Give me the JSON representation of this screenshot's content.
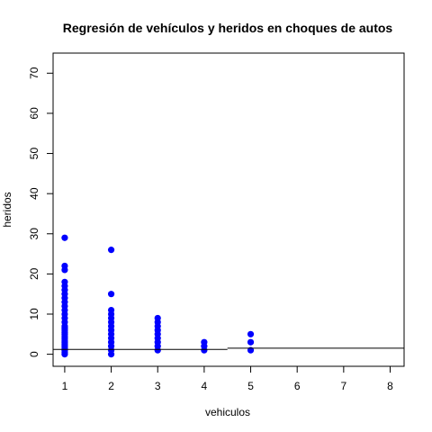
{
  "chart_data": {
    "type": "scatter",
    "title": "Regresión de vehículos y heridos en choques de autos",
    "xlabel": "vehiculos",
    "ylabel": "heridos",
    "xlim": [
      0.75,
      8.3
    ],
    "ylim": [
      -3,
      75
    ],
    "xticks": [
      "1",
      "2",
      "3",
      "4",
      "5",
      "6",
      "7",
      "8"
    ],
    "yticks": [
      "0",
      "10",
      "20",
      "30",
      "40",
      "50",
      "60",
      "70"
    ],
    "point_color": "#0000ff",
    "line_color": "#000000",
    "grid": false,
    "x": [
      1,
      1,
      1,
      1,
      1,
      1,
      1,
      1,
      1,
      1,
      1,
      1,
      1,
      1,
      1,
      1,
      1,
      1,
      1,
      1,
      1,
      1,
      1,
      1,
      1,
      1,
      1,
      1,
      1,
      2,
      2,
      2,
      2,
      2,
      2,
      2,
      2,
      2,
      2,
      2,
      2,
      2,
      2,
      3,
      3,
      3,
      3,
      3,
      3,
      3,
      3,
      3,
      4,
      4,
      4,
      5,
      5,
      5
    ],
    "y": [
      0,
      1,
      2,
      3,
      4,
      5,
      6,
      7,
      8,
      9,
      10,
      11,
      12,
      13,
      14,
      15,
      16,
      17,
      18,
      21,
      22,
      29,
      0.5,
      1.5,
      2.5,
      3.5,
      4.5,
      5.5,
      6.5,
      0,
      1,
      2,
      3,
      4,
      5,
      6,
      7,
      8,
      9,
      10,
      11,
      15,
      26,
      1,
      2,
      3,
      4,
      5,
      6,
      7,
      8,
      9,
      1,
      2,
      3,
      1,
      3,
      5
    ],
    "regression_line": {
      "segments": [
        {
          "x": [
            0.75,
            4.5
          ],
          "y": [
            1.2,
            1.2
          ]
        },
        {
          "x": [
            4.5,
            8.3
          ],
          "y": [
            1.5,
            1.5
          ]
        }
      ]
    }
  }
}
